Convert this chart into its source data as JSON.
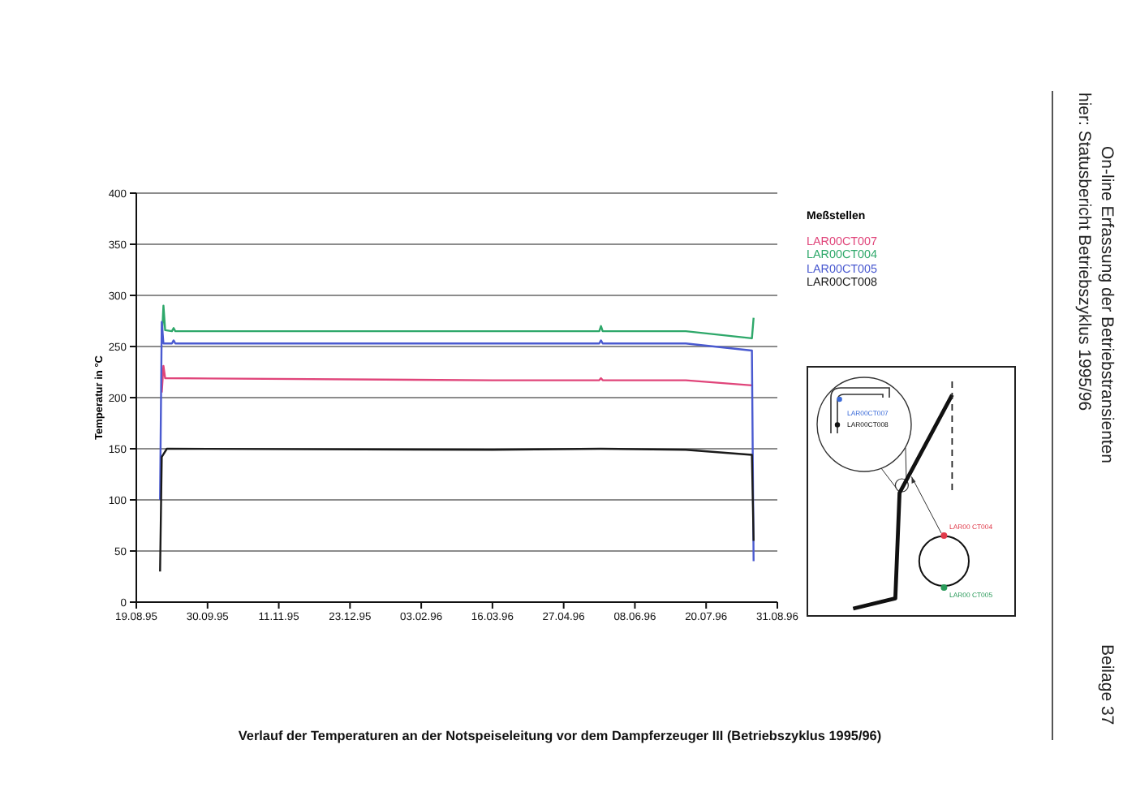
{
  "chart_data": {
    "type": "line",
    "title": "Verlauf der Temperaturen an der Notspeiseleitung vor dem Dampferzeuger III (Betriebszyklus 1995/96)",
    "ylabel": "Temperatur in °C",
    "legend_title": "Meßstellen",
    "legend": "right",
    "grid": "y",
    "annotations": [
      "On-line Erfassung der Betriebstransienten",
      "hier: Statusbericht Betriebszyklus 1995/96",
      "Beilage 37",
      "LAR00CT007",
      "LAR00CT008",
      "LAR00 CT004",
      "LAR00 CT005"
    ],
    "xlim": [
      "1995-08-19",
      "1996-08-31"
    ],
    "xticks": [
      {
        "value": "1995-08-19",
        "label": "19.08.95"
      },
      {
        "value": "1995-09-30",
        "label": "30.09.95"
      },
      {
        "value": "1995-11-11",
        "label": "11.11.95"
      },
      {
        "value": "1995-12-23",
        "label": "23.12.95"
      },
      {
        "value": "1996-02-03",
        "label": "03.02.96"
      },
      {
        "value": "1996-03-16",
        "label": "16.03.96"
      },
      {
        "value": "1996-04-27",
        "label": "27.04.96"
      },
      {
        "value": "1996-06-08",
        "label": "08.06.96"
      },
      {
        "value": "1996-07-20",
        "label": "20.07.96"
      },
      {
        "value": "1996-08-31",
        "label": "31.08.96"
      }
    ],
    "ylim": [
      0,
      400
    ],
    "yticks": [
      0,
      50,
      100,
      150,
      200,
      250,
      300,
      350,
      400
    ],
    "series": [
      {
        "name": "LAR00CT007",
        "color": "#e0457a",
        "x": [
          "1995-09-03",
          "1995-09-04",
          "1995-09-05",
          "1996-03-16",
          "1996-05-18",
          "1996-05-19",
          "1996-05-20",
          "1996-07-08",
          "1996-08-16"
        ],
        "values": [
          205,
          231,
          219,
          217,
          217,
          219,
          217,
          217,
          212
        ]
      },
      {
        "name": "LAR00CT004",
        "color": "#2ea86a",
        "x": [
          "1995-09-03",
          "1995-09-04",
          "1995-09-05",
          "1995-09-09",
          "1995-09-10",
          "1995-09-11",
          "1996-05-18",
          "1996-05-19",
          "1996-05-20",
          "1996-07-08",
          "1996-08-16",
          "1996-08-17"
        ],
        "values": [
          255,
          290,
          266,
          265,
          268,
          265,
          265,
          270,
          265,
          265,
          258,
          278
        ]
      },
      {
        "name": "LAR00CT005",
        "color": "#4a5ad0",
        "x": [
          "1995-09-02",
          "1995-09-03",
          "1995-09-04",
          "1995-09-09",
          "1995-09-10",
          "1995-09-11",
          "1996-05-18",
          "1996-05-19",
          "1996-05-20",
          "1996-07-08",
          "1996-08-16",
          "1996-08-17"
        ],
        "values": [
          100,
          274,
          253,
          253,
          256,
          253,
          253,
          256,
          253,
          253,
          246,
          40
        ]
      },
      {
        "name": "LAR00CT008",
        "color": "#1a1a1a",
        "x": [
          "1995-09-02",
          "1995-09-03",
          "1995-09-06",
          "1996-03-16",
          "1996-05-19",
          "1996-07-08",
          "1996-08-16",
          "1996-08-17"
        ],
        "values": [
          30,
          142,
          150,
          149,
          150,
          149,
          144,
          60
        ]
      }
    ]
  }
}
